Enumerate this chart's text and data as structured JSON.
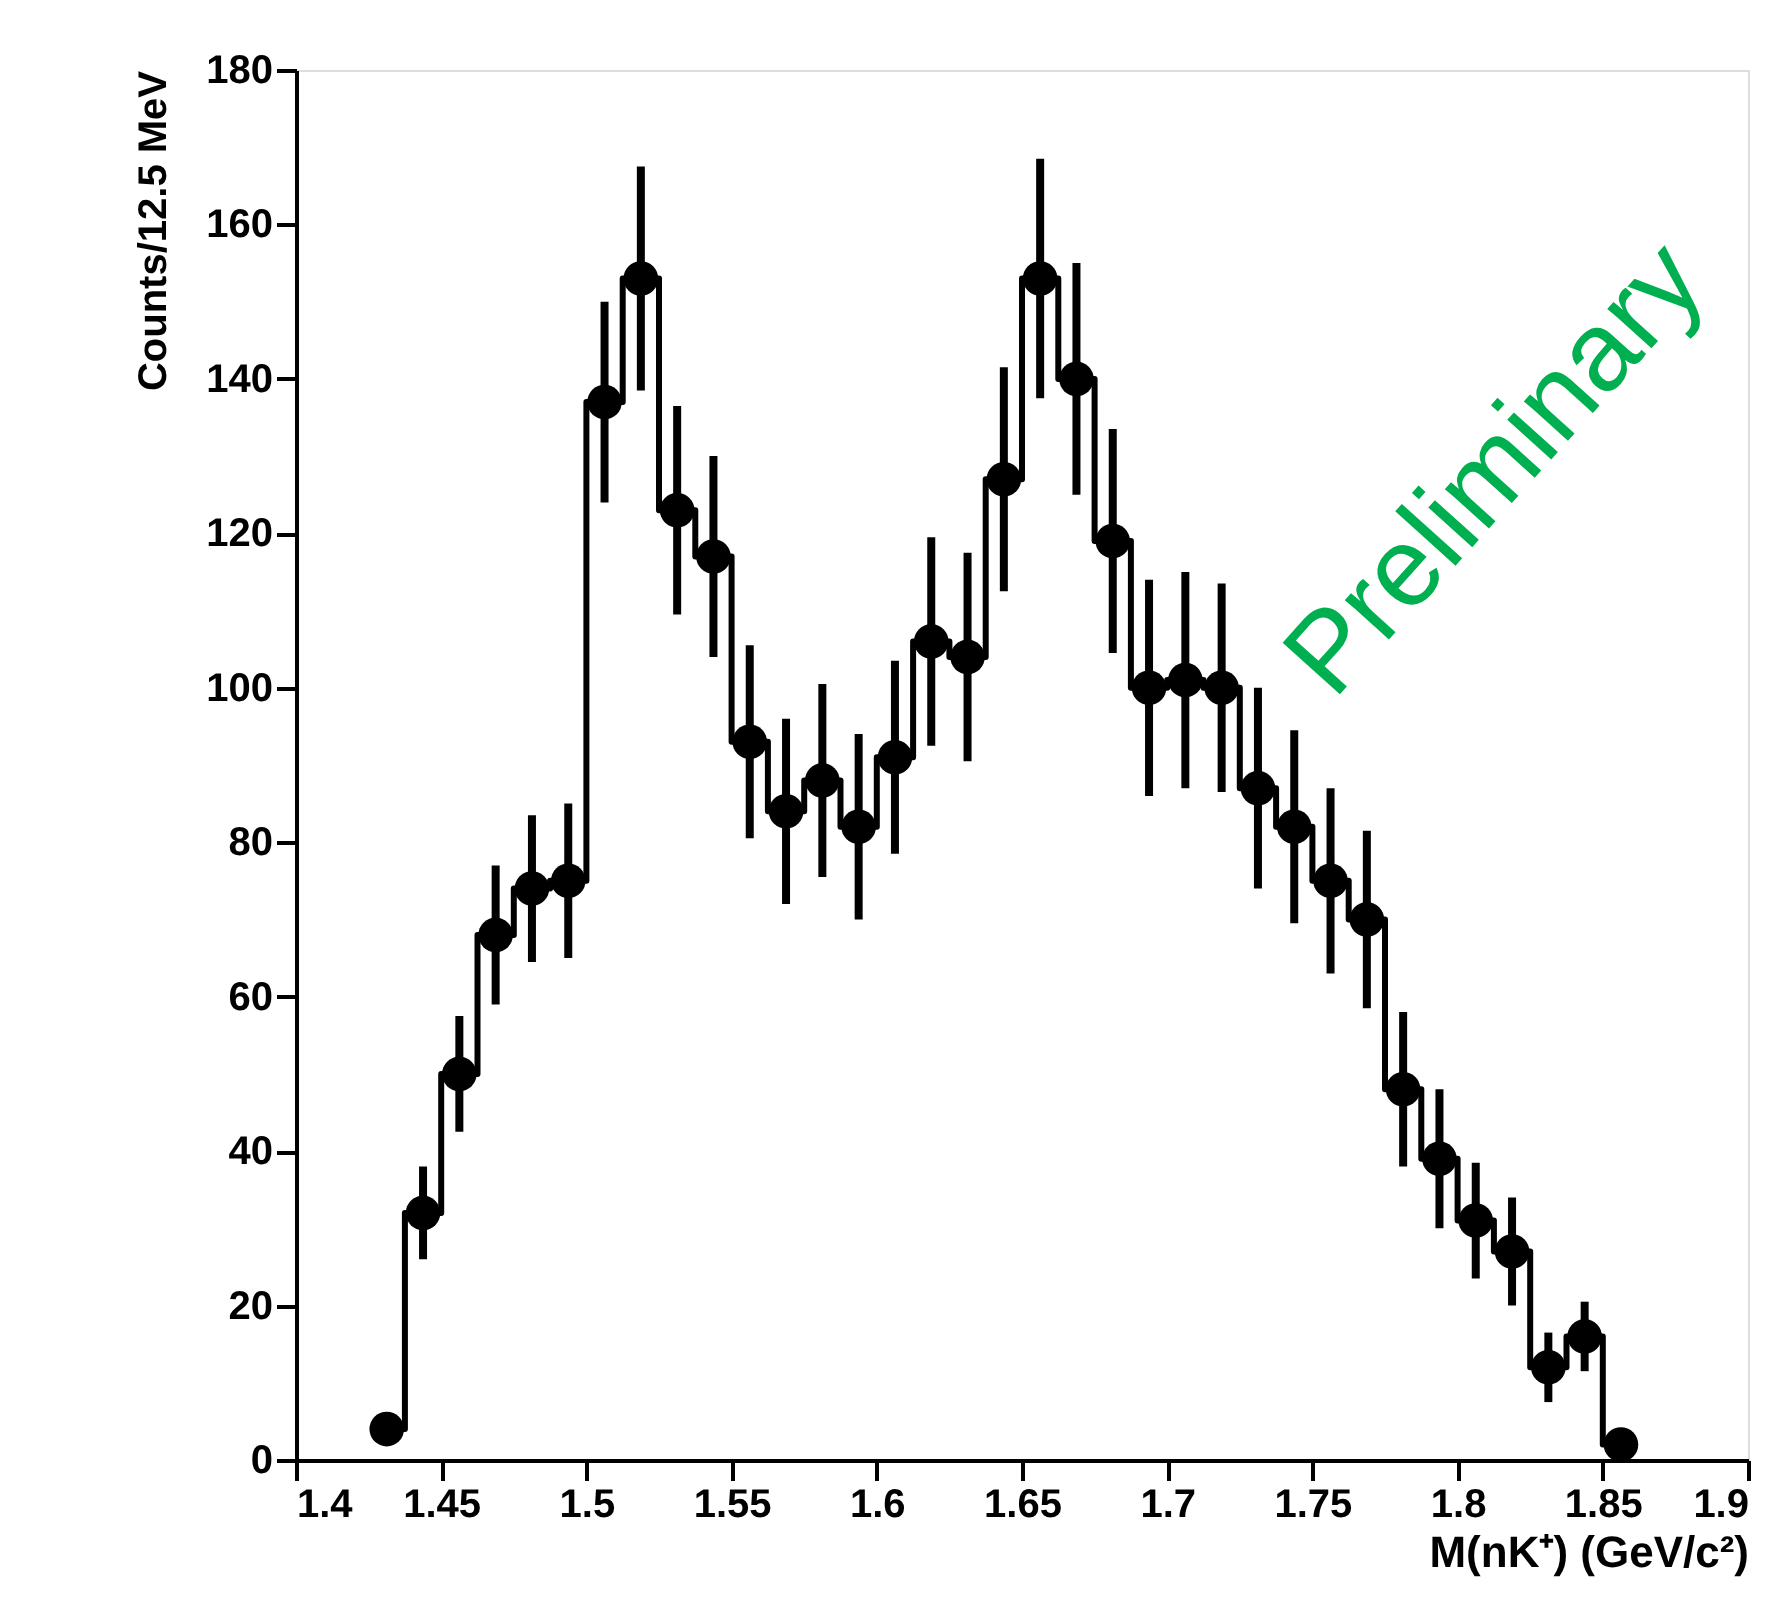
{
  "chart_data": {
    "type": "step",
    "xlabel": "M(nK⁺) (GeV/c²)",
    "ylabel": "Counts/12.5 MeV",
    "x": [
      1.43125,
      1.44375,
      1.45625,
      1.46875,
      1.48125,
      1.49375,
      1.50625,
      1.51875,
      1.53125,
      1.54375,
      1.55625,
      1.56875,
      1.58125,
      1.59375,
      1.60625,
      1.61875,
      1.63125,
      1.64375,
      1.65625,
      1.66875,
      1.68125,
      1.69375,
      1.70625,
      1.71875,
      1.73125,
      1.74375,
      1.75625,
      1.76875,
      1.78125,
      1.79375,
      1.80625,
      1.81875,
      1.83125,
      1.84375,
      1.85625
    ],
    "values": [
      4,
      32,
      50,
      68,
      74,
      75,
      137,
      153,
      123,
      117,
      93,
      84,
      88,
      82,
      91,
      106,
      104,
      127,
      153,
      140,
      119,
      100,
      101,
      100,
      87,
      82,
      75,
      70,
      48,
      39,
      31,
      27,
      12,
      16,
      2
    ],
    "errors": [
      2,
      6,
      7.5,
      9,
      9.5,
      10,
      13,
      14.5,
      13.5,
      13,
      12.5,
      12,
      12.5,
      12,
      12.5,
      13.5,
      13.5,
      14.5,
      15.5,
      15,
      14.5,
      14,
      14,
      13.5,
      13,
      12.5,
      12,
      11.5,
      10,
      9,
      7.5,
      7,
      4.5,
      4.5,
      1.5
    ],
    "color": "#000000",
    "marker": "circle",
    "line_style": "solid",
    "xlim": [
      1.4,
      1.9
    ],
    "xticks": [
      1.4,
      1.45,
      1.5,
      1.55,
      1.6,
      1.65,
      1.7,
      1.75,
      1.8,
      1.85,
      1.9
    ],
    "ylim": [
      0,
      180
    ],
    "yticks": [
      0,
      20,
      40,
      60,
      80,
      100,
      120,
      140,
      160,
      180
    ],
    "grid": false,
    "annotations": [
      "Preliminary"
    ]
  }
}
